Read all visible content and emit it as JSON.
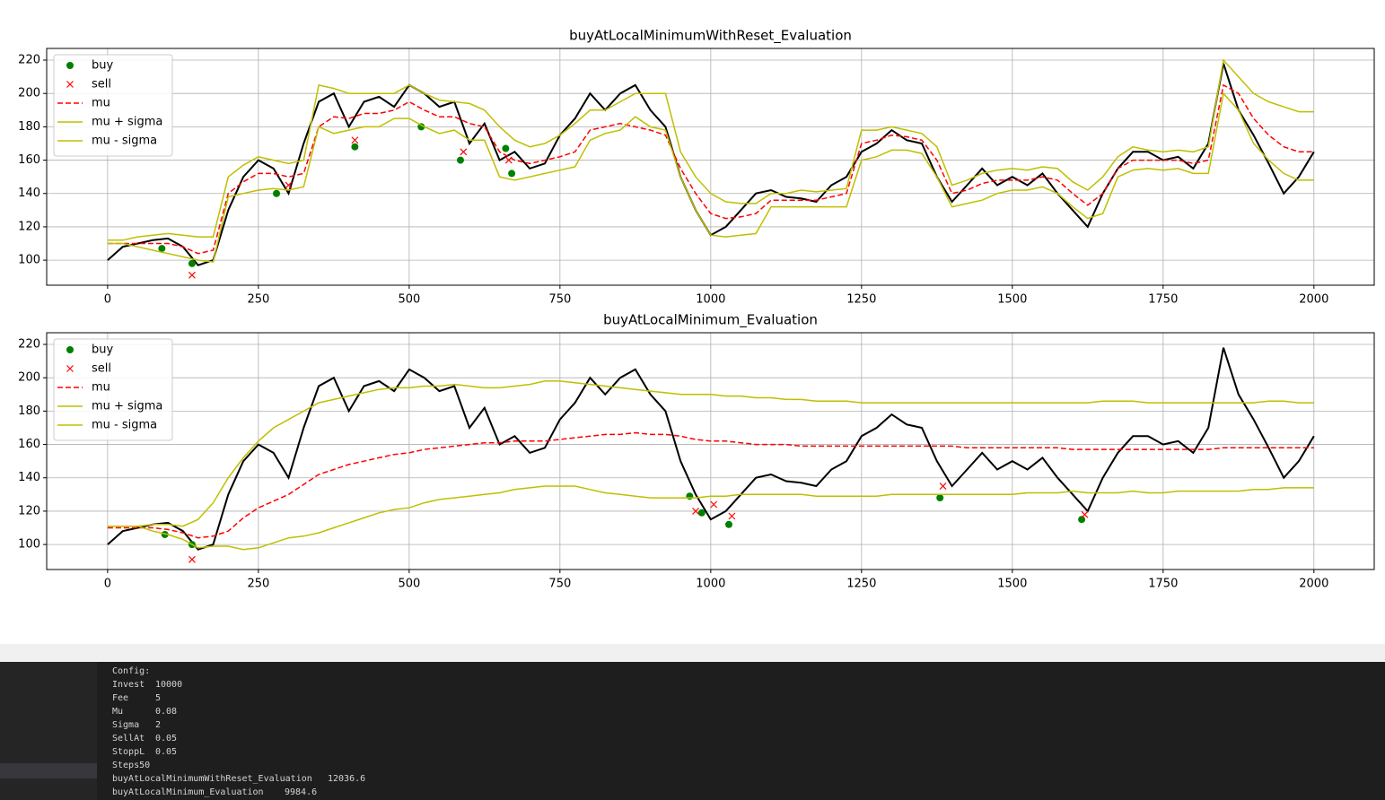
{
  "chart_data": [
    {
      "type": "line",
      "title": "buyAtLocalMinimumWithReset_Evaluation",
      "x": [
        0,
        25,
        50,
        75,
        100,
        125,
        150,
        175,
        200,
        225,
        250,
        275,
        300,
        325,
        350,
        375,
        400,
        425,
        450,
        475,
        500,
        525,
        550,
        575,
        600,
        625,
        650,
        675,
        700,
        725,
        750,
        775,
        800,
        825,
        850,
        875,
        900,
        925,
        950,
        975,
        1000,
        1025,
        1050,
        1075,
        1100,
        1125,
        1150,
        1175,
        1200,
        1225,
        1250,
        1275,
        1300,
        1325,
        1350,
        1375,
        1400,
        1425,
        1450,
        1475,
        1500,
        1525,
        1550,
        1575,
        1600,
        1625,
        1650,
        1675,
        1700,
        1725,
        1750,
        1775,
        1800,
        1825,
        1850,
        1875,
        1900,
        1925,
        1950,
        1975,
        2000
      ],
      "xlim": [
        -101,
        2100
      ],
      "ylim": [
        85,
        227
      ],
      "xticks": [
        0,
        250,
        500,
        750,
        1000,
        1250,
        1500,
        1750,
        2000
      ],
      "yticks": [
        100,
        120,
        140,
        160,
        180,
        200,
        220
      ],
      "grid": true,
      "legend": "upper left",
      "series": [
        {
          "color": "#000000",
          "values": [
            100,
            108,
            110,
            112,
            113,
            108,
            97,
            100,
            130,
            150,
            160,
            155,
            140,
            170,
            195,
            200,
            180,
            195,
            198,
            192,
            205,
            200,
            192,
            195,
            170,
            182,
            160,
            165,
            155,
            158,
            175,
            185,
            200,
            190,
            200,
            205,
            190,
            180,
            150,
            130,
            115,
            120,
            130,
            140,
            142,
            138,
            137,
            135,
            145,
            150,
            165,
            170,
            178,
            172,
            170,
            150,
            135,
            145,
            155,
            145,
            150,
            145,
            152,
            140,
            130,
            120,
            140,
            155,
            165,
            165,
            160,
            162,
            155,
            170,
            218,
            190,
            175,
            158,
            140,
            150,
            165
          ]
        },
        {
          "name": "buy",
          "color": "#008000",
          "marker": "o",
          "x": [
            90,
            140,
            280,
            410,
            520,
            585,
            660,
            670
          ],
          "values": [
            107,
            98,
            140,
            168,
            180,
            160,
            167,
            152
          ]
        },
        {
          "name": "sell",
          "color": "#ff0000",
          "marker": "x",
          "x": [
            140,
            300,
            410,
            590,
            665
          ],
          "values": [
            91,
            145,
            172,
            165,
            160
          ]
        },
        {
          "name": "mu",
          "color": "#ff0000",
          "linestyle": "dashed",
          "values": [
            110,
            110,
            110,
            110,
            110,
            108,
            104,
            106,
            140,
            147,
            152,
            152,
            150,
            152,
            180,
            186,
            185,
            188,
            188,
            190,
            195,
            190,
            186,
            186,
            182,
            180,
            165,
            160,
            158,
            160,
            162,
            165,
            178,
            180,
            182,
            180,
            178,
            175,
            155,
            140,
            128,
            125,
            126,
            128,
            136,
            136,
            136,
            136,
            138,
            140,
            170,
            172,
            175,
            174,
            172,
            160,
            140,
            142,
            146,
            148,
            148,
            148,
            150,
            148,
            140,
            133,
            140,
            155,
            160,
            160,
            160,
            160,
            158,
            160,
            205,
            200,
            185,
            175,
            168,
            165,
            165
          ]
        },
        {
          "name": "mu + sigma",
          "color": "#bfbf00",
          "values": [
            112,
            112,
            114,
            115,
            116,
            115,
            114,
            114,
            150,
            157,
            162,
            160,
            158,
            160,
            205,
            203,
            200,
            200,
            200,
            200,
            205,
            200,
            196,
            195,
            194,
            190,
            180,
            172,
            168,
            170,
            175,
            182,
            190,
            190,
            195,
            200,
            200,
            200,
            165,
            150,
            140,
            135,
            134,
            134,
            140,
            140,
            142,
            141,
            142,
            143,
            178,
            178,
            180,
            178,
            176,
            168,
            145,
            148,
            152,
            154,
            155,
            154,
            156,
            155,
            147,
            142,
            150,
            162,
            168,
            166,
            165,
            166,
            165,
            168,
            220,
            210,
            200,
            195,
            192,
            189,
            189
          ]
        },
        {
          "name": "mu - sigma",
          "color": "#bfbf00",
          "values": [
            110,
            110,
            108,
            106,
            104,
            102,
            100,
            99,
            138,
            140,
            142,
            143,
            142,
            144,
            180,
            176,
            178,
            180,
            180,
            185,
            185,
            180,
            176,
            178,
            172,
            172,
            150,
            148,
            150,
            152,
            154,
            156,
            172,
            176,
            178,
            186,
            180,
            178,
            150,
            130,
            115,
            114,
            115,
            116,
            132,
            132,
            132,
            132,
            132,
            132,
            160,
            162,
            166,
            166,
            164,
            150,
            132,
            134,
            136,
            140,
            142,
            142,
            144,
            140,
            132,
            125,
            128,
            150,
            154,
            155,
            154,
            155,
            152,
            152,
            200,
            190,
            170,
            160,
            152,
            148,
            148
          ]
        }
      ]
    },
    {
      "type": "line",
      "title": "buyAtLocalMinimum_Evaluation",
      "x": [
        0,
        25,
        50,
        75,
        100,
        125,
        150,
        175,
        200,
        225,
        250,
        275,
        300,
        325,
        350,
        375,
        400,
        425,
        450,
        475,
        500,
        525,
        550,
        575,
        600,
        625,
        650,
        675,
        700,
        725,
        750,
        775,
        800,
        825,
        850,
        875,
        900,
        925,
        950,
        975,
        1000,
        1025,
        1050,
        1075,
        1100,
        1125,
        1150,
        1175,
        1200,
        1225,
        1250,
        1275,
        1300,
        1325,
        1350,
        1375,
        1400,
        1425,
        1450,
        1475,
        1500,
        1525,
        1550,
        1575,
        1600,
        1625,
        1650,
        1675,
        1700,
        1725,
        1750,
        1775,
        1800,
        1825,
        1850,
        1875,
        1900,
        1925,
        1950,
        1975,
        2000
      ],
      "xlim": [
        -101,
        2100
      ],
      "ylim": [
        85,
        227
      ],
      "xticks": [
        0,
        250,
        500,
        750,
        1000,
        1250,
        1500,
        1750,
        2000
      ],
      "yticks": [
        100,
        120,
        140,
        160,
        180,
        200,
        220
      ],
      "grid": true,
      "legend": "upper left",
      "series": [
        {
          "color": "#000000",
          "values": [
            100,
            108,
            110,
            112,
            113,
            108,
            97,
            100,
            130,
            150,
            160,
            155,
            140,
            170,
            195,
            200,
            180,
            195,
            198,
            192,
            205,
            200,
            192,
            195,
            170,
            182,
            160,
            165,
            155,
            158,
            175,
            185,
            200,
            190,
            200,
            205,
            190,
            180,
            150,
            130,
            115,
            120,
            130,
            140,
            142,
            138,
            137,
            135,
            145,
            150,
            165,
            170,
            178,
            172,
            170,
            150,
            135,
            145,
            155,
            145,
            150,
            145,
            152,
            140,
            130,
            120,
            140,
            155,
            165,
            165,
            160,
            162,
            155,
            170,
            218,
            190,
            175,
            158,
            140,
            150,
            165
          ]
        },
        {
          "name": "buy",
          "color": "#008000",
          "marker": "o",
          "x": [
            95,
            140,
            965,
            985,
            1030,
            1380,
            1615
          ],
          "values": [
            106,
            100,
            129,
            119,
            112,
            128,
            115
          ]
        },
        {
          "name": "sell",
          "color": "#ff0000",
          "marker": "x",
          "x": [
            140,
            975,
            1005,
            1035,
            1385,
            1620
          ],
          "values": [
            91,
            120,
            124,
            117,
            135,
            118
          ]
        },
        {
          "name": "mu",
          "color": "#ff0000",
          "linestyle": "dashed",
          "values": [
            110,
            110,
            110,
            110,
            109,
            107,
            104,
            105,
            108,
            116,
            122,
            126,
            130,
            136,
            142,
            145,
            148,
            150,
            152,
            154,
            155,
            157,
            158,
            159,
            160,
            161,
            161,
            162,
            162,
            162,
            163,
            164,
            165,
            166,
            166,
            167,
            166,
            166,
            165,
            163,
            162,
            162,
            161,
            160,
            160,
            160,
            159,
            159,
            159,
            159,
            159,
            159,
            159,
            159,
            159,
            159,
            159,
            158,
            158,
            158,
            158,
            158,
            158,
            158,
            157,
            157,
            157,
            157,
            157,
            157,
            157,
            157,
            157,
            157,
            158,
            158,
            158,
            158,
            158,
            158,
            158
          ]
        },
        {
          "name": "mu + sigma",
          "color": "#bfbf00",
          "values": [
            111,
            111,
            111,
            112,
            112,
            111,
            115,
            125,
            140,
            152,
            162,
            170,
            175,
            180,
            185,
            187,
            189,
            191,
            193,
            194,
            194,
            195,
            195,
            196,
            195,
            194,
            194,
            195,
            196,
            198,
            198,
            197,
            196,
            195,
            194,
            193,
            192,
            191,
            190,
            190,
            190,
            189,
            189,
            188,
            188,
            187,
            187,
            186,
            186,
            186,
            185,
            185,
            185,
            185,
            185,
            185,
            185,
            185,
            185,
            185,
            185,
            185,
            185,
            185,
            185,
            185,
            186,
            186,
            186,
            185,
            185,
            185,
            185,
            185,
            185,
            185,
            185,
            186,
            186,
            185,
            185
          ]
        },
        {
          "name": "mu - sigma",
          "color": "#bfbf00",
          "values": [
            111,
            111,
            111,
            108,
            106,
            103,
            98,
            99,
            99,
            97,
            98,
            101,
            104,
            105,
            107,
            110,
            113,
            116,
            119,
            121,
            122,
            125,
            127,
            128,
            129,
            130,
            131,
            133,
            134,
            135,
            135,
            135,
            133,
            131,
            130,
            129,
            128,
            128,
            128,
            128,
            129,
            129,
            130,
            130,
            130,
            130,
            130,
            129,
            129,
            129,
            129,
            129,
            130,
            130,
            130,
            130,
            130,
            130,
            130,
            130,
            130,
            131,
            131,
            131,
            132,
            131,
            131,
            131,
            132,
            131,
            131,
            132,
            132,
            132,
            132,
            132,
            133,
            133,
            134,
            134,
            134
          ]
        }
      ]
    }
  ],
  "console": {
    "rows": [
      [
        "Config:"
      ],
      [
        "Invest",
        "10000"
      ],
      [
        "Fee",
        "5"
      ],
      [
        "Mu",
        "0.08"
      ],
      [
        "Sigma",
        "2"
      ],
      [
        "SellAt",
        "0.05"
      ],
      [
        "StoppL",
        "0.05"
      ],
      [
        "Steps50"
      ],
      [
        "buyAtLocalMinimumWithReset_Evaluation",
        "12036.6"
      ],
      [
        "buyAtLocalMinimum_Evaluation",
        "9984.6"
      ]
    ]
  }
}
